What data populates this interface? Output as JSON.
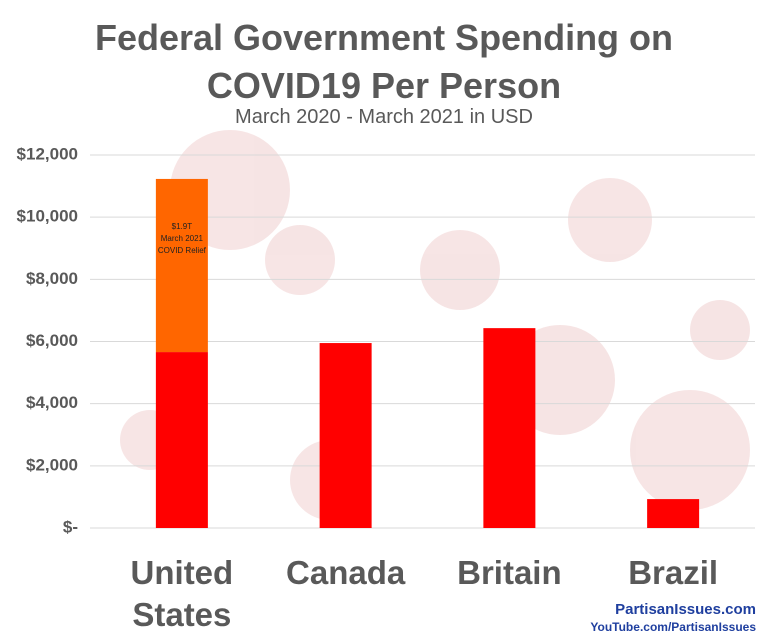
{
  "chart_data": {
    "type": "stacked-bar",
    "title": "Federal Government Spending on COVID19 Per Person",
    "subtitle": "March 2020 - March 2021 in USD",
    "categories": [
      "United States",
      "Canada",
      "Britain",
      "Brazil"
    ],
    "series": [
      {
        "color": "#ff0000",
        "values": [
          5660,
          5950,
          6430,
          930
        ]
      },
      {
        "color": "#ff6600",
        "values": [
          5570,
          null,
          null,
          null
        ]
      }
    ],
    "annotation": [
      "$1.9T",
      "March 2021",
      "COVID Relief"
    ],
    "ylim": [
      0,
      12000
    ],
    "yticks": [
      {
        "value": 0,
        "label": "$-"
      },
      {
        "value": 2000,
        "label": "$2,000"
      },
      {
        "value": 4000,
        "label": "$4,000"
      },
      {
        "value": 6000,
        "label": "$6,000"
      },
      {
        "value": 8000,
        "label": "$8,000"
      },
      {
        "value": 10000,
        "label": "$10,000"
      },
      {
        "value": 12000,
        "label": "$12,000"
      }
    ],
    "grid": true
  },
  "watermark": {
    "site": "PartisanIssues.com",
    "youtube": "YouTube.com/PartisanIssues"
  }
}
